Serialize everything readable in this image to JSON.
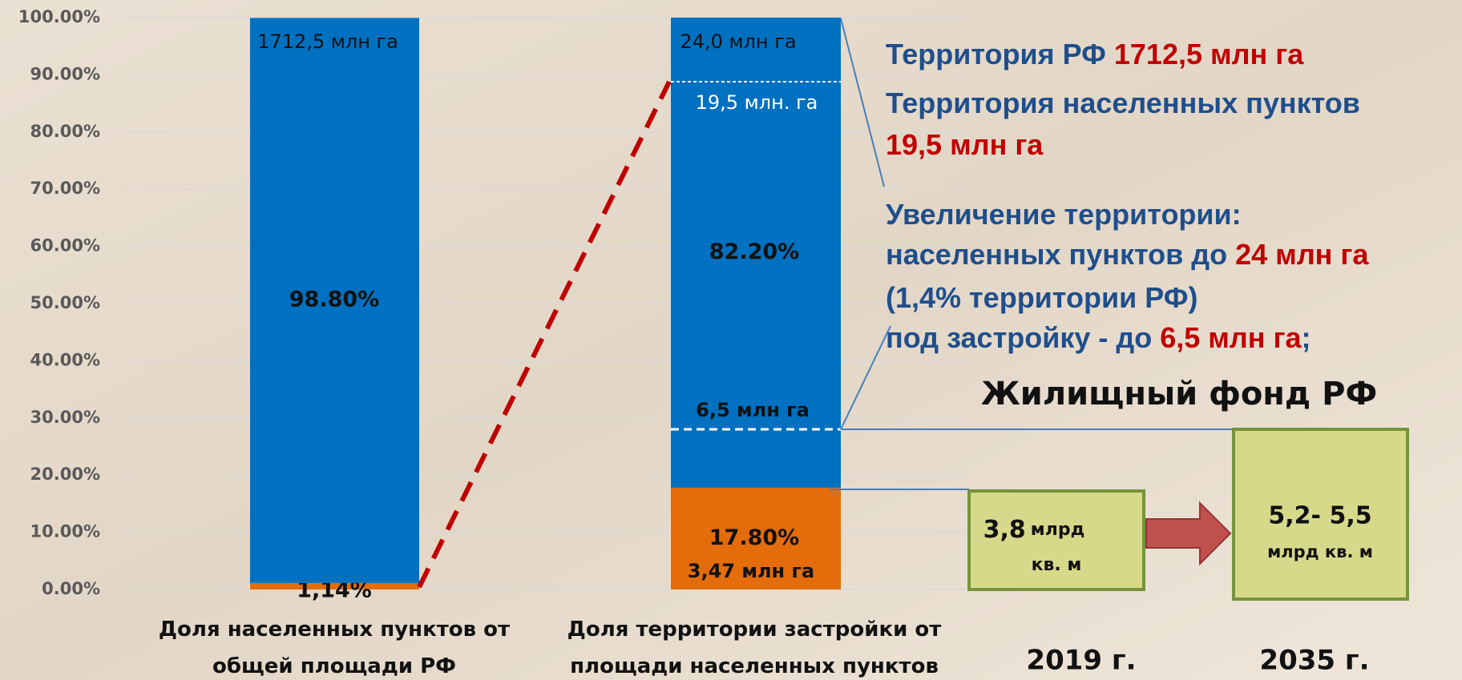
{
  "chart_data": {
    "type": "bar",
    "stacked": true,
    "categories": [
      "Доля населенных пунктов от общей площади РФ",
      "Доля территории застройки от площади населенных пунктов"
    ],
    "series": [
      {
        "color": "#e46c0a",
        "values": [
          1.14,
          17.8
        ],
        "value_labels": [
          "1,14%",
          "17.80%"
        ]
      },
      {
        "color": "#0070c0",
        "values": [
          98.8,
          82.2
        ],
        "value_labels": [
          "98.80%",
          "82.20%"
        ]
      }
    ],
    "ylim": [
      0,
      100
    ],
    "yticks": [
      {
        "value": 0,
        "label": "0.00%"
      },
      {
        "value": 10,
        "label": "10.00%"
      },
      {
        "value": 20,
        "label": "20.00%"
      },
      {
        "value": 30,
        "label": "30.00%"
      },
      {
        "value": 40,
        "label": "40.00%"
      },
      {
        "value": 50,
        "label": "50.00%"
      },
      {
        "value": 60,
        "label": "60.00%"
      },
      {
        "value": 70,
        "label": "70.00%"
      },
      {
        "value": 80,
        "label": "80.00%"
      },
      {
        "value": 90,
        "label": "90.00%"
      },
      {
        "value": 100,
        "label": "100.00%"
      }
    ],
    "grid": true,
    "annotations": [
      "1712,5 млн га",
      "24,0 млн га",
      "19,5 млн. га",
      "6,5 млн га",
      "3,47 млн га"
    ]
  },
  "info": [
    [
      {
        "text": "Территория РФ ",
        "color": "#1f4e8c"
      },
      {
        "text": "1712,5 млн га",
        "color": "#c00000"
      }
    ],
    [
      {
        "text": "Территория населенных пунктов",
        "color": "#1f4e8c"
      }
    ],
    [
      {
        "text": "19,5 млн га",
        "color": "#c00000"
      }
    ],
    [
      {
        "text": "Увеличение территории:",
        "color": "#1f4e8c"
      }
    ],
    [
      {
        "text": "населенных пунктов до ",
        "color": "#1f4e8c"
      },
      {
        "text": "24 млн га",
        "color": "#c00000"
      }
    ],
    [
      {
        "text": "(1,4% территории РФ)",
        "color": "#1f4e8c"
      }
    ],
    [
      {
        "text": "под застройку - до ",
        "color": "#1f4e8c"
      },
      {
        "text": "6,5 млн га",
        "color": "#c00000"
      },
      {
        "text": ";",
        "color": "#1f4e8c"
      }
    ]
  ],
  "housing": {
    "title": "Жилищный фонд РФ",
    "box_2019": {
      "value": "3,8",
      "unit1": "млрд",
      "unit2": "кв. м"
    },
    "box_2035": {
      "value": "5,2- 5,5",
      "unit": "млрд кв. м"
    },
    "years": [
      "2019 г.",
      "2035 г."
    ]
  }
}
